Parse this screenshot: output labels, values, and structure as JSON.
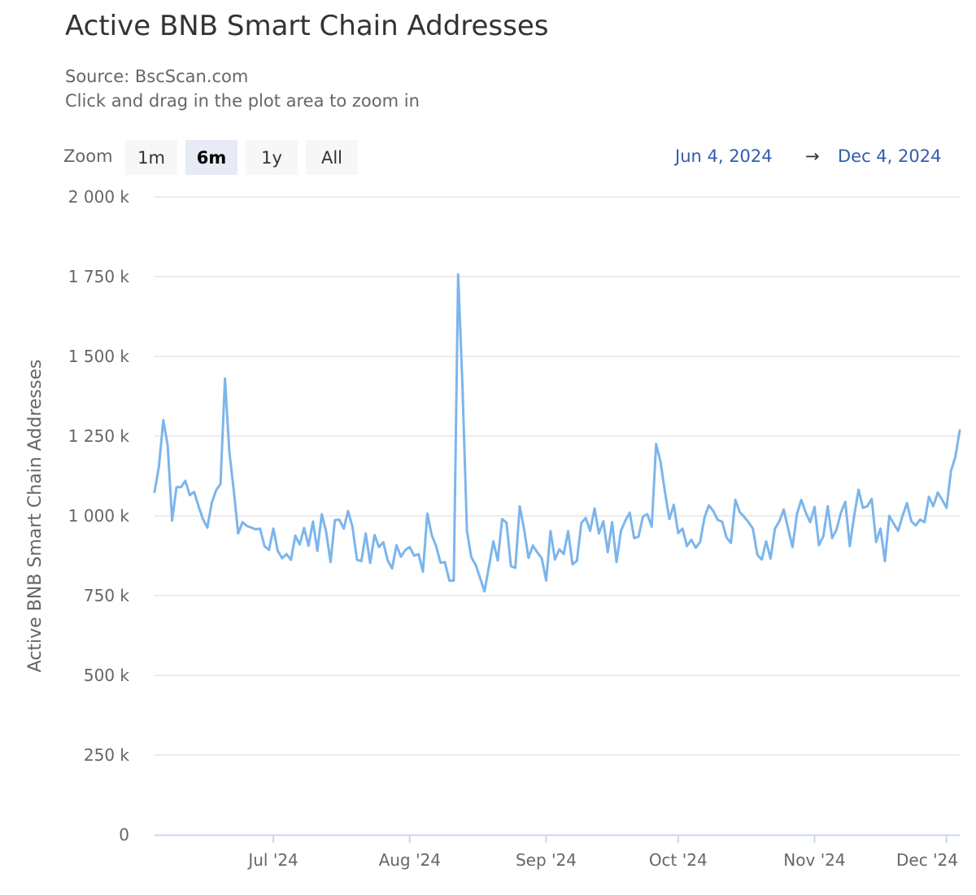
{
  "title": "Active BNB Smart Chain Addresses",
  "subtitle": {
    "source": "Source: BscScan.com",
    "hint": "Click and drag in the plot area to zoom in"
  },
  "zoom": {
    "label": "Zoom",
    "buttons": [
      "1m",
      "6m",
      "1y",
      "All"
    ],
    "selected": "6m"
  },
  "range": {
    "from": "Jun 4, 2024",
    "arrow": "→",
    "to": "Dec 4, 2024"
  },
  "colors": {
    "line": "#7cb5ec",
    "grid": "#e6e6e6",
    "axis": "#ccd6eb",
    "range_text": "#335cad"
  },
  "chart_data": {
    "type": "line",
    "title": "Active BNB Smart Chain Addresses",
    "subtitle": "Source: BscScan.com",
    "xlabel": "",
    "ylabel": "Active BNB Smart Chain Addresses",
    "y_tick_labels": [
      "0",
      "250 k",
      "500 k",
      "750 k",
      "1 000 k",
      "1 250 k",
      "1 500 k",
      "1 750 k",
      "2 000 k"
    ],
    "y_ticks": [
      0,
      250000,
      500000,
      750000,
      1000000,
      1250000,
      1500000,
      1750000,
      2000000
    ],
    "ylim": [
      0,
      2000000
    ],
    "x_tick_labels": [
      "Jul '24",
      "Aug '24",
      "Sep '24",
      "Oct '24",
      "Nov '24",
      "Dec '24"
    ],
    "x_tick_dates": [
      "2024-07-01",
      "2024-08-01",
      "2024-09-01",
      "2024-10-01",
      "2024-11-01",
      "2024-12-01"
    ],
    "xlim": [
      "2024-06-04",
      "2024-12-04"
    ],
    "grid": true,
    "legend": "none",
    "series": [
      {
        "color": "#7cb5ec",
        "x": [
          "2024-06-04",
          "2024-06-05",
          "2024-06-06",
          "2024-06-07",
          "2024-06-08",
          "2024-06-09",
          "2024-06-10",
          "2024-06-11",
          "2024-06-12",
          "2024-06-13",
          "2024-06-14",
          "2024-06-15",
          "2024-06-16",
          "2024-06-17",
          "2024-06-18",
          "2024-06-19",
          "2024-06-20",
          "2024-06-21",
          "2024-06-22",
          "2024-06-23",
          "2024-06-24",
          "2024-06-25",
          "2024-06-26",
          "2024-06-27",
          "2024-06-28",
          "2024-06-29",
          "2024-06-30",
          "2024-07-01",
          "2024-07-02",
          "2024-07-03",
          "2024-07-04",
          "2024-07-05",
          "2024-07-06",
          "2024-07-07",
          "2024-07-08",
          "2024-07-09",
          "2024-07-10",
          "2024-07-11",
          "2024-07-12",
          "2024-07-13",
          "2024-07-14",
          "2024-07-15",
          "2024-07-16",
          "2024-07-17",
          "2024-07-18",
          "2024-07-19",
          "2024-07-20",
          "2024-07-21",
          "2024-07-22",
          "2024-07-23",
          "2024-07-24",
          "2024-07-25",
          "2024-07-26",
          "2024-07-27",
          "2024-07-28",
          "2024-07-29",
          "2024-07-30",
          "2024-07-31",
          "2024-08-01",
          "2024-08-02",
          "2024-08-03",
          "2024-08-04",
          "2024-08-05",
          "2024-08-06",
          "2024-08-07",
          "2024-08-08",
          "2024-08-09",
          "2024-08-10",
          "2024-08-11",
          "2024-08-12",
          "2024-08-13",
          "2024-08-14",
          "2024-08-15",
          "2024-08-16",
          "2024-08-17",
          "2024-08-18",
          "2024-08-19",
          "2024-08-20",
          "2024-08-21",
          "2024-08-22",
          "2024-08-23",
          "2024-08-24",
          "2024-08-25",
          "2024-08-26",
          "2024-08-27",
          "2024-08-28",
          "2024-08-29",
          "2024-08-30",
          "2024-08-31",
          "2024-09-01",
          "2024-09-02",
          "2024-09-03",
          "2024-09-04",
          "2024-09-05",
          "2024-09-06",
          "2024-09-07",
          "2024-09-08",
          "2024-09-09",
          "2024-09-10",
          "2024-09-11",
          "2024-09-12",
          "2024-09-13",
          "2024-09-14",
          "2024-09-15",
          "2024-09-16",
          "2024-09-17",
          "2024-09-18",
          "2024-09-19",
          "2024-09-20",
          "2024-09-21",
          "2024-09-22",
          "2024-09-23",
          "2024-09-24",
          "2024-09-25",
          "2024-09-26",
          "2024-09-27",
          "2024-09-28",
          "2024-09-29",
          "2024-09-30",
          "2024-10-01",
          "2024-10-02",
          "2024-10-03",
          "2024-10-04",
          "2024-10-05",
          "2024-10-06",
          "2024-10-07",
          "2024-10-08",
          "2024-10-09",
          "2024-10-10",
          "2024-10-11",
          "2024-10-12",
          "2024-10-13",
          "2024-10-14",
          "2024-10-15",
          "2024-10-16",
          "2024-10-17",
          "2024-10-18",
          "2024-10-19",
          "2024-10-20",
          "2024-10-21",
          "2024-10-22",
          "2024-10-23",
          "2024-10-24",
          "2024-10-25",
          "2024-10-26",
          "2024-10-27",
          "2024-10-28",
          "2024-10-29",
          "2024-10-30",
          "2024-10-31",
          "2024-11-01",
          "2024-11-02",
          "2024-11-03",
          "2024-11-04",
          "2024-11-05",
          "2024-11-06",
          "2024-11-07",
          "2024-11-08",
          "2024-11-09",
          "2024-11-10",
          "2024-11-11",
          "2024-11-12",
          "2024-11-13",
          "2024-11-14",
          "2024-11-15",
          "2024-11-16",
          "2024-11-17",
          "2024-11-18",
          "2024-11-19",
          "2024-11-20",
          "2024-11-21",
          "2024-11-22",
          "2024-11-23",
          "2024-11-24",
          "2024-11-25",
          "2024-11-26",
          "2024-11-27",
          "2024-11-28",
          "2024-11-29",
          "2024-11-30",
          "2024-12-01",
          "2024-12-02",
          "2024-12-03",
          "2024-12-04"
        ],
        "values": [
          1075000,
          1155000,
          1300000,
          1220000,
          985000,
          1090000,
          1090000,
          1110000,
          1065000,
          1075000,
          1030000,
          990000,
          963000,
          1040000,
          1080000,
          1100000,
          1430000,
          1200000,
          1080000,
          945000,
          980000,
          968000,
          963000,
          958000,
          960000,
          905000,
          893000,
          960000,
          890000,
          867000,
          880000,
          862000,
          938000,
          910000,
          962000,
          906000,
          982000,
          890000,
          1005000,
          950000,
          855000,
          987000,
          988000,
          960000,
          1015000,
          965000,
          862000,
          858000,
          945000,
          852000,
          940000,
          902000,
          917000,
          860000,
          835000,
          908000,
          872000,
          893000,
          902000,
          875000,
          880000,
          825000,
          1007000,
          940000,
          905000,
          853000,
          855000,
          797000,
          797000,
          1757000,
          1400000,
          953000,
          870000,
          846000,
          805000,
          763000,
          840000,
          920000,
          860000,
          990000,
          978000,
          842000,
          837000,
          1030000,
          958000,
          868000,
          907000,
          885000,
          867000,
          797000,
          952000,
          863000,
          895000,
          880000,
          952000,
          848000,
          859000,
          978000,
          993000,
          953000,
          1023000,
          945000,
          983000,
          886000,
          980000,
          855000,
          953000,
          985000,
          1010000,
          930000,
          935000,
          998000,
          1005000,
          966000,
          1225000,
          1170000,
          1076000,
          990000,
          1035000,
          946000,
          960000,
          905000,
          925000,
          900000,
          918000,
          995000,
          1033000,
          1015000,
          987000,
          982000,
          932000,
          915000,
          1050000,
          1012000,
          997000,
          980000,
          960000,
          878000,
          863000,
          920000,
          866000,
          960000,
          983000,
          1020000,
          960000,
          902000,
          1005000,
          1050000,
          1010000,
          980000,
          1028000,
          908000,
          936000,
          1030000,
          930000,
          957000,
          1010000,
          1044000,
          905000,
          1000000,
          1082000,
          1025000,
          1030000,
          1053000,
          918000,
          960000,
          858000,
          1000000,
          975000,
          953000,
          1000000,
          1040000,
          983000,
          970000,
          988000,
          980000,
          1060000,
          1030000,
          1073000,
          1050000,
          1025000,
          1140000,
          1185000,
          1268000
        ]
      }
    ]
  }
}
